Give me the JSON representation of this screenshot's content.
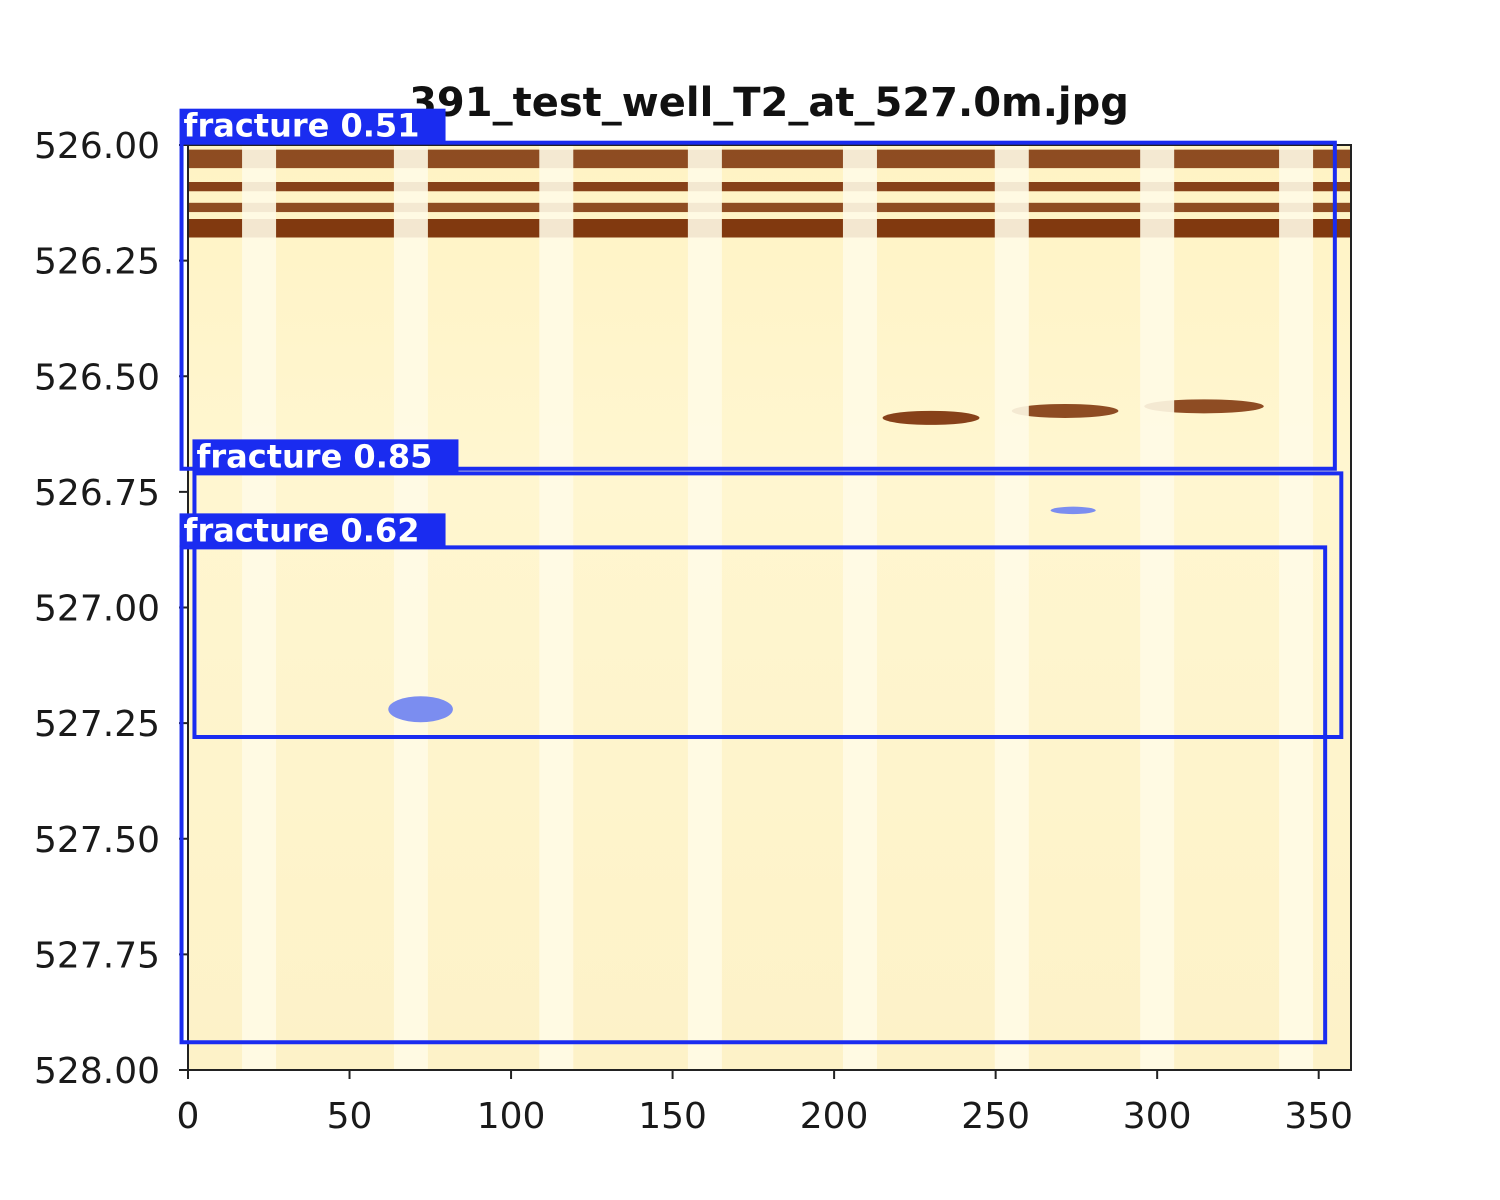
{
  "chart_data": {
    "type": "heatmap",
    "title": "391_test_well_T2_at_527.0m.jpg",
    "xlabel": "",
    "ylabel": "",
    "xlim": [
      0,
      360
    ],
    "ylim": [
      528.0,
      526.0
    ],
    "y_inverted": true,
    "grid": false,
    "colormap": "YlOrBr",
    "x_ticks": [
      0,
      50,
      100,
      150,
      200,
      250,
      300,
      350
    ],
    "x_tick_labels": [
      "0",
      "50",
      "100",
      "150",
      "200",
      "250",
      "300",
      "350"
    ],
    "y_ticks": [
      526.0,
      526.25,
      526.5,
      526.75,
      527.0,
      527.25,
      527.5,
      527.75,
      528.0
    ],
    "y_tick_labels": [
      "526.00",
      "526.25",
      "526.50",
      "526.75",
      "527.00",
      "527.25",
      "527.50",
      "527.75",
      "528.00"
    ],
    "stripe_centers_x": [
      22,
      69,
      114,
      160,
      208,
      255,
      300,
      343
    ],
    "dark_bands": [
      {
        "x_start": 0,
        "x_end": 360,
        "depth_top": 526.01,
        "depth_bottom": 526.05,
        "intensity": 0.85
      },
      {
        "x_start": 0,
        "x_end": 360,
        "depth_top": 526.08,
        "depth_bottom": 526.1,
        "intensity": 0.9
      },
      {
        "x_start": 0,
        "x_end": 360,
        "depth_top": 526.125,
        "depth_bottom": 526.145,
        "intensity": 0.85
      },
      {
        "x_start": 0,
        "x_end": 360,
        "depth_top": 526.16,
        "depth_bottom": 526.2,
        "intensity": 0.95
      }
    ],
    "dark_lenses": [
      {
        "x_start": 215,
        "x_end": 245,
        "depth": 526.59,
        "intensity": 0.9
      },
      {
        "x_start": 255,
        "x_end": 288,
        "depth": 526.575,
        "intensity": 0.85
      },
      {
        "x_start": 296,
        "x_end": 333,
        "depth": 526.565,
        "intensity": 0.85
      }
    ],
    "detections": [
      {
        "label": "fracture 0.51",
        "class": "fracture",
        "confidence": 0.51,
        "x_start": -2,
        "x_end": 355,
        "depth_top": 525.995,
        "depth_bottom": 526.7
      },
      {
        "label": "fracture 0.85",
        "class": "fracture",
        "confidence": 0.85,
        "x_start": 2,
        "x_end": 357,
        "depth_top": 526.71,
        "depth_bottom": 527.28
      },
      {
        "label": "fracture 0.62",
        "class": "fracture",
        "confidence": 0.62,
        "x_start": -2,
        "x_end": 352,
        "depth_top": 526.87,
        "depth_bottom": 527.94
      }
    ],
    "masks": [
      {
        "x_center": 72,
        "depth_center": 527.22,
        "x_radius": 10,
        "depth_radius": 0.028,
        "color": "#7b8df0"
      },
      {
        "x_center": 274,
        "depth_center": 526.79,
        "x_radius": 7,
        "depth_radius": 0.008,
        "color": "#7b8df0"
      }
    ],
    "colors": {
      "box": "#1a2cf0",
      "mask": "#7b8df0",
      "background": "#fff8d6",
      "stripe": "#fffbe6",
      "band": "#7a2e05"
    }
  }
}
